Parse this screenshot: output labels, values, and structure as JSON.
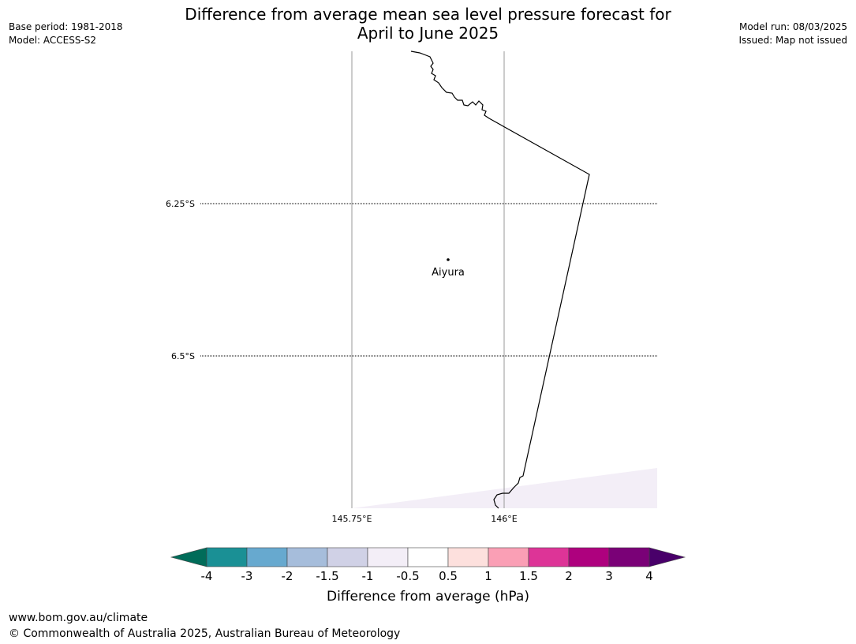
{
  "header": {
    "title_line1": "Difference from average mean sea level pressure forecast for",
    "title_line2": "April to June 2025",
    "base_period": "Base period: 1981-2018",
    "model": "Model: ACCESS-S2",
    "model_run": "Model run: 08/03/2025",
    "issued": "Issued: Map not issued"
  },
  "map": {
    "lat_labels": [
      "6.25°S",
      "6.5°S"
    ],
    "lon_labels": [
      "145.75°E",
      "146°E"
    ],
    "place": "Aiyura",
    "shaded_category": "-1 to -0.5"
  },
  "colorbar": {
    "ticks": [
      "-4",
      "-3",
      "-2",
      "-1.5",
      "-1",
      "-0.5",
      "0.5",
      "1",
      "1.5",
      "2",
      "3",
      "4"
    ],
    "colors": [
      "#1a9095",
      "#67a9cf",
      "#a6bddb",
      "#d0d1e6",
      "#f3eef7",
      "#ffffff",
      "#fde0dd",
      "#fa9fb5",
      "#dd3497",
      "#ae017e",
      "#7a0177"
    ],
    "under_color": "#016c59",
    "over_color": "#49006a",
    "label": "Difference from average (hPa)"
  },
  "footer": {
    "url": "www.bom.gov.au/climate",
    "copyright": "© Commonwealth of Australia 2025, Australian Bureau of Meteorology"
  }
}
